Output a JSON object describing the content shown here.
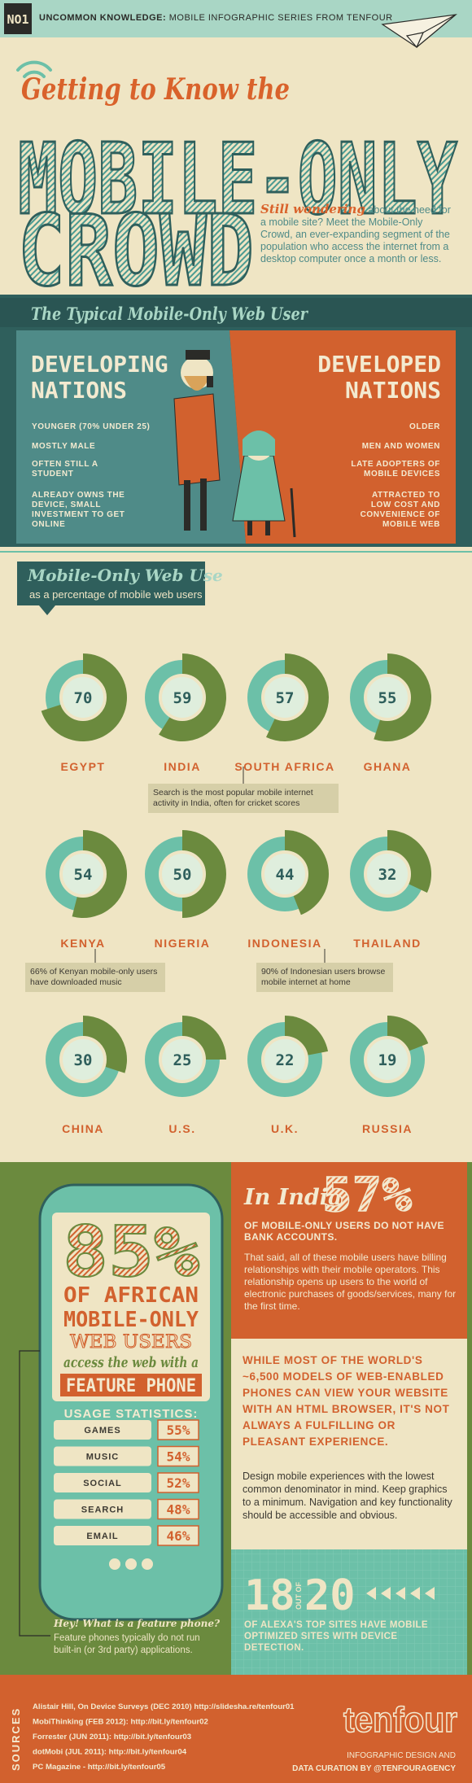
{
  "header": {
    "badge": "NO1",
    "tagline_bold": "UNCOMMON KNOWLEDGE:",
    "tagline": "MOBILE INFOGRAPHIC SERIES FROM TENFOUR",
    "kicker": "Getting to Know the",
    "title_line1": "MOBILE-ONLY",
    "title_line2": "CROWD",
    "intro_lead": "Still wondering",
    "intro": "about the need for a mobile site? Meet the Mobile-Only Crowd, an ever-expanding segment of the population who access the internet from a desktop computer once a month or less."
  },
  "typical_user": {
    "title": "The Typical Mobile-Only Web User",
    "developing": {
      "heading": "DEVELOPING NATIONS",
      "traits": [
        "YOUNGER (70% UNDER 25)",
        "MOSTLY MALE",
        "OFTEN STILL A STUDENT",
        "ALREADY OWNS THE DEVICE, SMALL INVESTMENT TO GET ONLINE"
      ]
    },
    "developed": {
      "heading": "DEVELOPED NATIONS",
      "traits": [
        "OLDER",
        "MEN AND WOMEN",
        "LATE ADOPTERS OF MOBILE DEVICES",
        "ATTRACTED TO LOW COST AND CONVENIENCE OF MOBILE WEB"
      ]
    }
  },
  "chart_data": {
    "type": "donut",
    "title": "Mobile-Only Web Use",
    "subtitle": "as a percentage of mobile web users",
    "categories": [
      "EGYPT",
      "INDIA",
      "SOUTH AFRICA",
      "GHANA",
      "KENYA",
      "NIGERIA",
      "INDONESIA",
      "THAILAND",
      "CHINA",
      "U.S.",
      "U.K.",
      "RUSSIA"
    ],
    "values": [
      70,
      59,
      57,
      55,
      54,
      50,
      44,
      32,
      30,
      25,
      22,
      19
    ],
    "color": "#6b8a3e",
    "rest_color": "#6cc0a8",
    "annotations": [
      "Search is the most popular mobile internet activity in India, often for cricket scores",
      "66% of Kenyan mobile-only users have downloaded music",
      "90% of Indonesian users browse mobile internet at home"
    ]
  },
  "phone": {
    "headline": "85%",
    "line1": "OF AFRICAN",
    "line2": "MOBILE-ONLY",
    "line3": "WEB USERS",
    "line4": "access the web with a",
    "line5": "FEATURE PHONE",
    "stats_title": "USAGE STATISTICS:",
    "stats": [
      {
        "label": "GAMES",
        "value": "55%"
      },
      {
        "label": "MUSIC",
        "value": "54%"
      },
      {
        "label": "SOCIAL",
        "value": "52%"
      },
      {
        "label": "SEARCH",
        "value": "48%"
      },
      {
        "label": "EMAIL",
        "value": "46%"
      }
    ],
    "note_title": "Hey! What is a feature phone?",
    "note": "Feature phones typically do not run built-in (or 3rd party) applications."
  },
  "india": {
    "lead": "In India",
    "figure": "57%",
    "bold": "OF MOBILE-ONLY USERS DO NOT HAVE BANK ACCOUNTS.",
    "text": "That said, all of these mobile users have billing relationships with their mobile operators. This relationship opens up users to the world of electronic purchases of goods/services, many for the first time."
  },
  "browser": {
    "bold": "WHILE MOST OF THE WORLD'S ~6,500 MODELS OF WEB-ENABLED PHONES CAN VIEW YOUR WEBSITE WITH AN HTML BROWSER, IT'S NOT ALWAYS A FULFILLING OR PLEASANT EXPERIENCE.",
    "text": "Design mobile experiences with the lowest common denominator in mind. Keep graphics to a minimum. Navigation and key functionality should be accessible and obvious."
  },
  "alexa": {
    "number": "18",
    "out_of": "OUT OF",
    "total": "20",
    "text": "OF ALEXA'S TOP SITES HAVE MOBILE OPTIMIZED SITES WITH DEVICE DETECTION."
  },
  "sources": {
    "label": "SOURCES",
    "items": [
      "Alistair Hill, On Device Surveys (DEC 2010) http://slidesha.re/tenfour01",
      "MobiThinking (FEB 2012): http://bit.ly/tenfour02",
      "Forrester (JUN 2011): http://bit.ly/tenfour03",
      "dotMobi (JUL 2011): http://bit.ly/tenfour04",
      "PC Magazine - http://bit.ly/tenfour05"
    ]
  },
  "footer": {
    "logo": "tenfour",
    "credit1": "INFOGRAPHIC DESIGN AND",
    "credit2": "DATA CURATION BY @TENFOURAGENCY"
  }
}
